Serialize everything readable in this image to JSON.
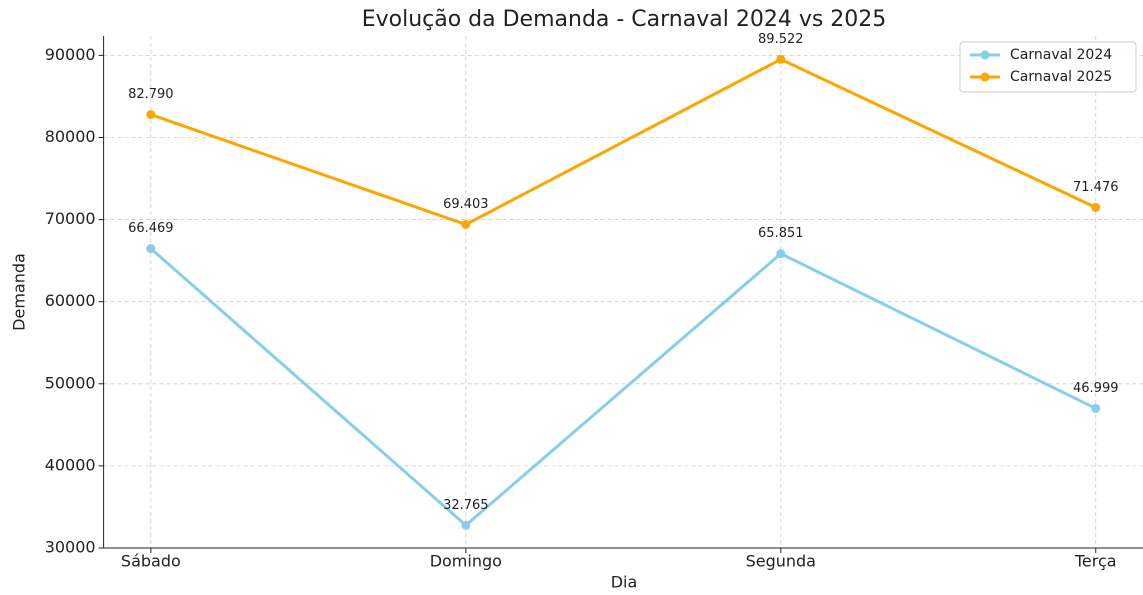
{
  "chart_data": {
    "type": "line",
    "title": "Evolução da Demanda - Carnaval 2024 vs 2025",
    "x_label": "Dia",
    "y_label": "Demanda",
    "categories": [
      "Sábado",
      "Domingo",
      "Segunda",
      "Terça"
    ],
    "series": [
      {
        "name": "Carnaval 2024",
        "color": "#87ceeb",
        "values": [
          66469,
          32765,
          65851,
          46999
        ],
        "value_labels": [
          "66.469",
          "32.765",
          "65.851",
          "46.999"
        ]
      },
      {
        "name": "Carnaval 2025",
        "color": "#ffa500",
        "values": [
          82790,
          69403,
          89522,
          71476
        ],
        "value_labels": [
          "82.790",
          "69.403",
          "89.522",
          "71.476"
        ]
      }
    ],
    "ylim": [
      30000,
      92360
    ],
    "yticks": [
      30000,
      40000,
      50000,
      60000,
      70000,
      80000,
      90000
    ],
    "grid": true,
    "legend": "upper right"
  }
}
